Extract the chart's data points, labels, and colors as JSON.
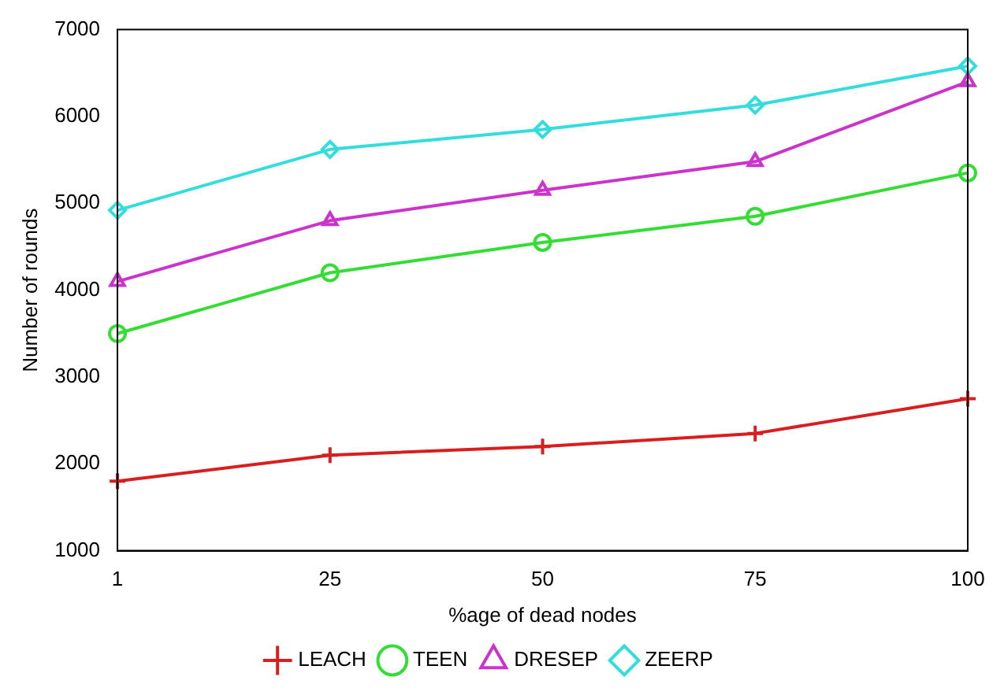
{
  "chart_data": {
    "type": "line",
    "xlabel": "%age of dead nodes",
    "ylabel": "Number of rounds",
    "categories": [
      "1",
      "25",
      "50",
      "75",
      "100"
    ],
    "series": [
      {
        "name": "LEACH",
        "color": "#d81e1e",
        "marker": "cross",
        "values": [
          1800,
          2100,
          2200,
          2350,
          2750
        ]
      },
      {
        "name": "TEEN",
        "color": "#33dd33",
        "marker": "circle",
        "values": [
          3500,
          4200,
          4550,
          4850,
          5350
        ]
      },
      {
        "name": "DRESEP",
        "color": "#cc33cc",
        "marker": "triangle",
        "values": [
          4100,
          4800,
          5150,
          5480,
          6400
        ]
      },
      {
        "name": "ZEERP",
        "color": "#33dddd",
        "marker": "diamond",
        "values": [
          4920,
          5620,
          5850,
          6130,
          6580
        ]
      }
    ],
    "ylim": [
      1000,
      7000
    ],
    "yticks": [
      1000,
      2000,
      3000,
      4000,
      5000,
      6000,
      7000
    ],
    "grid": false,
    "legend": "bottom",
    "line_style": "solid"
  }
}
